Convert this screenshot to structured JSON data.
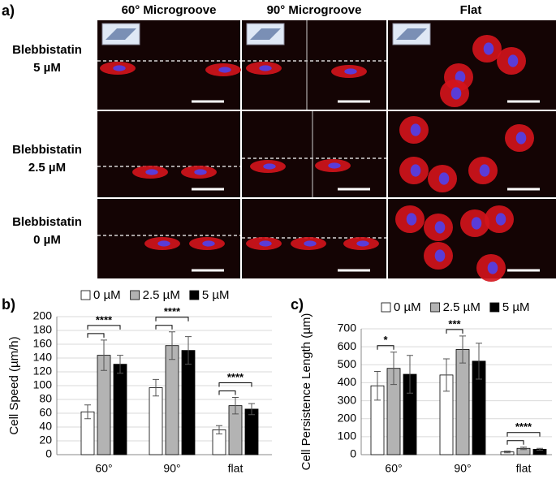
{
  "panel_labels": [
    "a)",
    "b)",
    "c)"
  ],
  "figure_a": {
    "columns": [
      "60° Microgroove",
      "90° Microgroove",
      "Flat"
    ],
    "rows": [
      [
        "Blebbistatin",
        "5 µM"
      ],
      [
        "Blebbistatin",
        "2.5 µM"
      ],
      [
        "Blebbistatin",
        "0 µM"
      ]
    ]
  },
  "chart_data": [
    {
      "type": "bar",
      "ylabel": "Cell Speed  (µm/h)",
      "categories": [
        "60°",
        "90°",
        "flat"
      ],
      "series": [
        {
          "name": "0 µM",
          "color": "#ffffff",
          "values": [
            62,
            97,
            36
          ],
          "errors": [
            10,
            12,
            6
          ]
        },
        {
          "name": "2.5 µM",
          "color": "#b3b3b3",
          "values": [
            144,
            158,
            71
          ],
          "errors": [
            22,
            20,
            12
          ]
        },
        {
          "name": "5 µM",
          "color": "#000000",
          "values": [
            131,
            151,
            66
          ],
          "errors": [
            13,
            20,
            8
          ]
        }
      ],
      "ylim": [
        0,
        200
      ],
      "yticks": [
        0,
        20,
        40,
        60,
        80,
        100,
        120,
        140,
        160,
        180,
        200
      ],
      "grid": true,
      "annotations": [
        "****",
        "****",
        "****"
      ]
    },
    {
      "type": "bar",
      "ylabel": "Cell Persistence Length (µm)",
      "categories": [
        "60°",
        "90°",
        "flat"
      ],
      "series": [
        {
          "name": "0 µM",
          "color": "#ffffff",
          "values": [
            383,
            443,
            15
          ],
          "errors": [
            80,
            90,
            5
          ]
        },
        {
          "name": "2.5 µM",
          "color": "#b3b3b3",
          "values": [
            480,
            585,
            35
          ],
          "errors": [
            90,
            75,
            7
          ]
        },
        {
          "name": "5 µM",
          "color": "#000000",
          "values": [
            447,
            520,
            30
          ],
          "errors": [
            105,
            100,
            5
          ]
        }
      ],
      "ylim": [
        0,
        700
      ],
      "yticks": [
        0,
        100,
        200,
        300,
        400,
        500,
        600,
        700
      ],
      "grid": true,
      "annotations": [
        "*",
        "***",
        "****"
      ]
    }
  ]
}
